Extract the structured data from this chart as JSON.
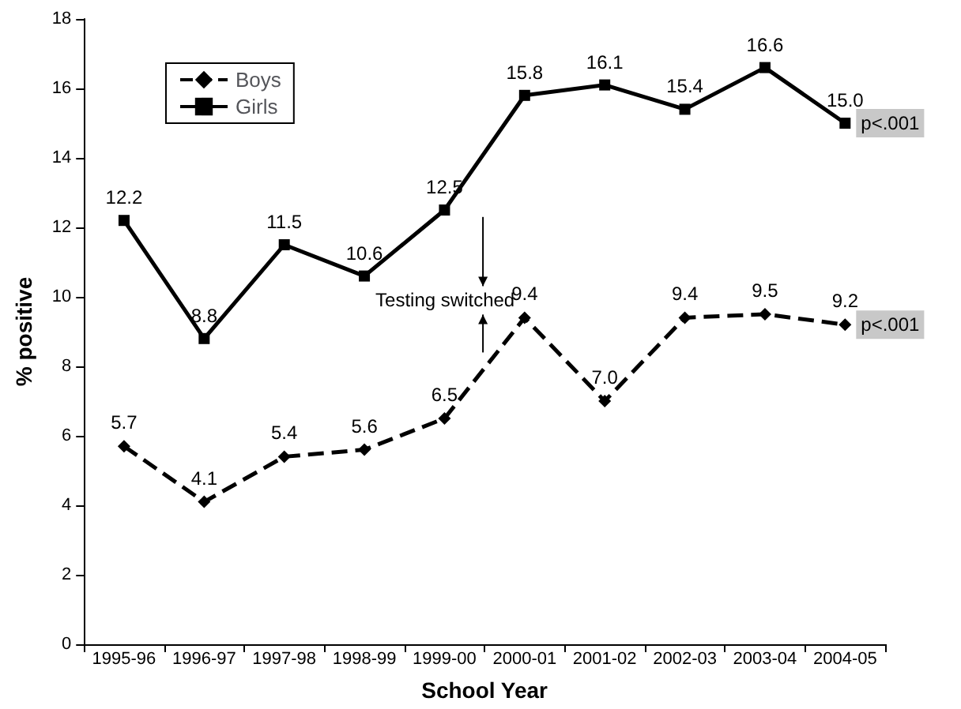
{
  "chart_data": {
    "type": "line",
    "xlabel": "School Year",
    "ylabel": "% positive",
    "categories": [
      "1995-96",
      "1996-97",
      "1997-98",
      "1998-99",
      "1999-00",
      "2000-01",
      "2001-02",
      "2002-03",
      "2003-04",
      "2004-05"
    ],
    "series": [
      {
        "name": "Boys",
        "color": "#000000",
        "marker": "diamond",
        "line_style": "dashed",
        "values": [
          5.7,
          4.1,
          5.4,
          5.6,
          6.5,
          9.4,
          7.0,
          9.4,
          9.5,
          9.2
        ],
        "value_labels": [
          "5.7",
          "4.1",
          "5.4",
          "5.6",
          "6.5",
          "9.4",
          "7.0",
          "9.4",
          "9.5",
          "9.2"
        ]
      },
      {
        "name": "Girls",
        "color": "#000000",
        "marker": "square",
        "line_style": "solid",
        "values": [
          12.2,
          8.8,
          11.5,
          10.6,
          12.5,
          15.8,
          16.1,
          15.4,
          16.6,
          15.0
        ],
        "value_labels": [
          "12.2",
          "8.8",
          "11.5",
          "10.6",
          "12.5",
          "15.8",
          "16.1",
          "15.4",
          "16.6",
          "15.0"
        ]
      }
    ],
    "ylim": [
      0,
      18
    ],
    "yticks": [
      0,
      2,
      4,
      6,
      8,
      10,
      12,
      14,
      16,
      18
    ],
    "grid": false,
    "legend": "top left",
    "annotations": [
      "Testing switched",
      {
        "text": "p<.001",
        "x": "2004-05",
        "y": 15.0
      },
      {
        "text": "p<.001",
        "x": "2004-05",
        "y": 9.2
      }
    ]
  }
}
